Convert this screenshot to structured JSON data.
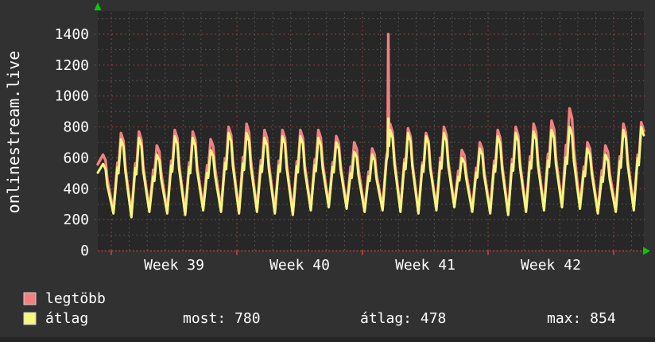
{
  "page": {
    "background": "#313131",
    "bottom_strip_color": "#252525"
  },
  "graph": {
    "plot_bg": "#272727",
    "grid_minor_color": "#5c5c5c",
    "grid_major_color": "#a04545",
    "axis_color": "#bc4040",
    "tick_color": "#d04848",
    "arrow_color": "#00cc00",
    "text_color": "#ffffff"
  },
  "legend": {
    "items": [
      {
        "label": "legtöbb",
        "color": "#f28080"
      },
      {
        "label": "átlag",
        "color": "#f7f77e"
      }
    ],
    "stats": [
      {
        "text": "most: 780"
      },
      {
        "text": "átlag: 478"
      },
      {
        "text": "max: 854"
      }
    ]
  },
  "chart_data": {
    "type": "line",
    "title": "onlinestream.live",
    "ylabel": "onlinestream.live",
    "ylim": [
      0,
      1500
    ],
    "y_ticks": [
      0,
      200,
      400,
      600,
      800,
      1000,
      1200,
      1400
    ],
    "y_minor_step": 100,
    "x_tick_labels": [
      "Week 39",
      "Week 40",
      "Week 41",
      "Week 42"
    ],
    "x_unit": "days",
    "days_per_week": 7,
    "num_daily_cycles": 31,
    "grid": "dotted, minor gray every 100 / 1 day, major red every 200 / 1 week",
    "legend_position": "bottom-left",
    "series": [
      {
        "name": "legtöbb",
        "color": "#f28080",
        "meaning": "daily maximum viewers",
        "daily_peaks": [
          620,
          760,
          770,
          680,
          780,
          770,
          720,
          800,
          820,
          780,
          780,
          780,
          780,
          740,
          700,
          660,
          820,
          790,
          760,
          800,
          650,
          700,
          780,
          800,
          820,
          840,
          920,
          700,
          680,
          820,
          830
        ],
        "daily_troughs": [
          245,
          255,
          230,
          265,
          255,
          245,
          275,
          265,
          255,
          265,
          255,
          245,
          275,
          295,
          285,
          265,
          275,
          265,
          255,
          275,
          295,
          265,
          255,
          245,
          265,
          275,
          295,
          285,
          255,
          265,
          275
        ]
      },
      {
        "name": "átlag",
        "color": "#f7f77e",
        "meaning": "daily average viewers",
        "daily_peaks": [
          560,
          720,
          730,
          620,
          740,
          730,
          650,
          760,
          760,
          730,
          740,
          740,
          730,
          700,
          640,
          620,
          780,
          760,
          740,
          760,
          600,
          660,
          740,
          760,
          770,
          780,
          800,
          660,
          620,
          780,
          800
        ],
        "daily_troughs": [
          230,
          240,
          215,
          250,
          240,
          230,
          260,
          250,
          240,
          250,
          240,
          230,
          260,
          280,
          270,
          250,
          260,
          250,
          240,
          260,
          280,
          250,
          240,
          230,
          250,
          260,
          280,
          270,
          240,
          250,
          260
        ]
      }
    ],
    "spike": {
      "cycle": 16,
      "week": "Week 41",
      "legtobb_value": 1400,
      "atlag_value": 854
    },
    "stats": {
      "most": 780,
      "atlag": 478,
      "max": 854
    }
  }
}
